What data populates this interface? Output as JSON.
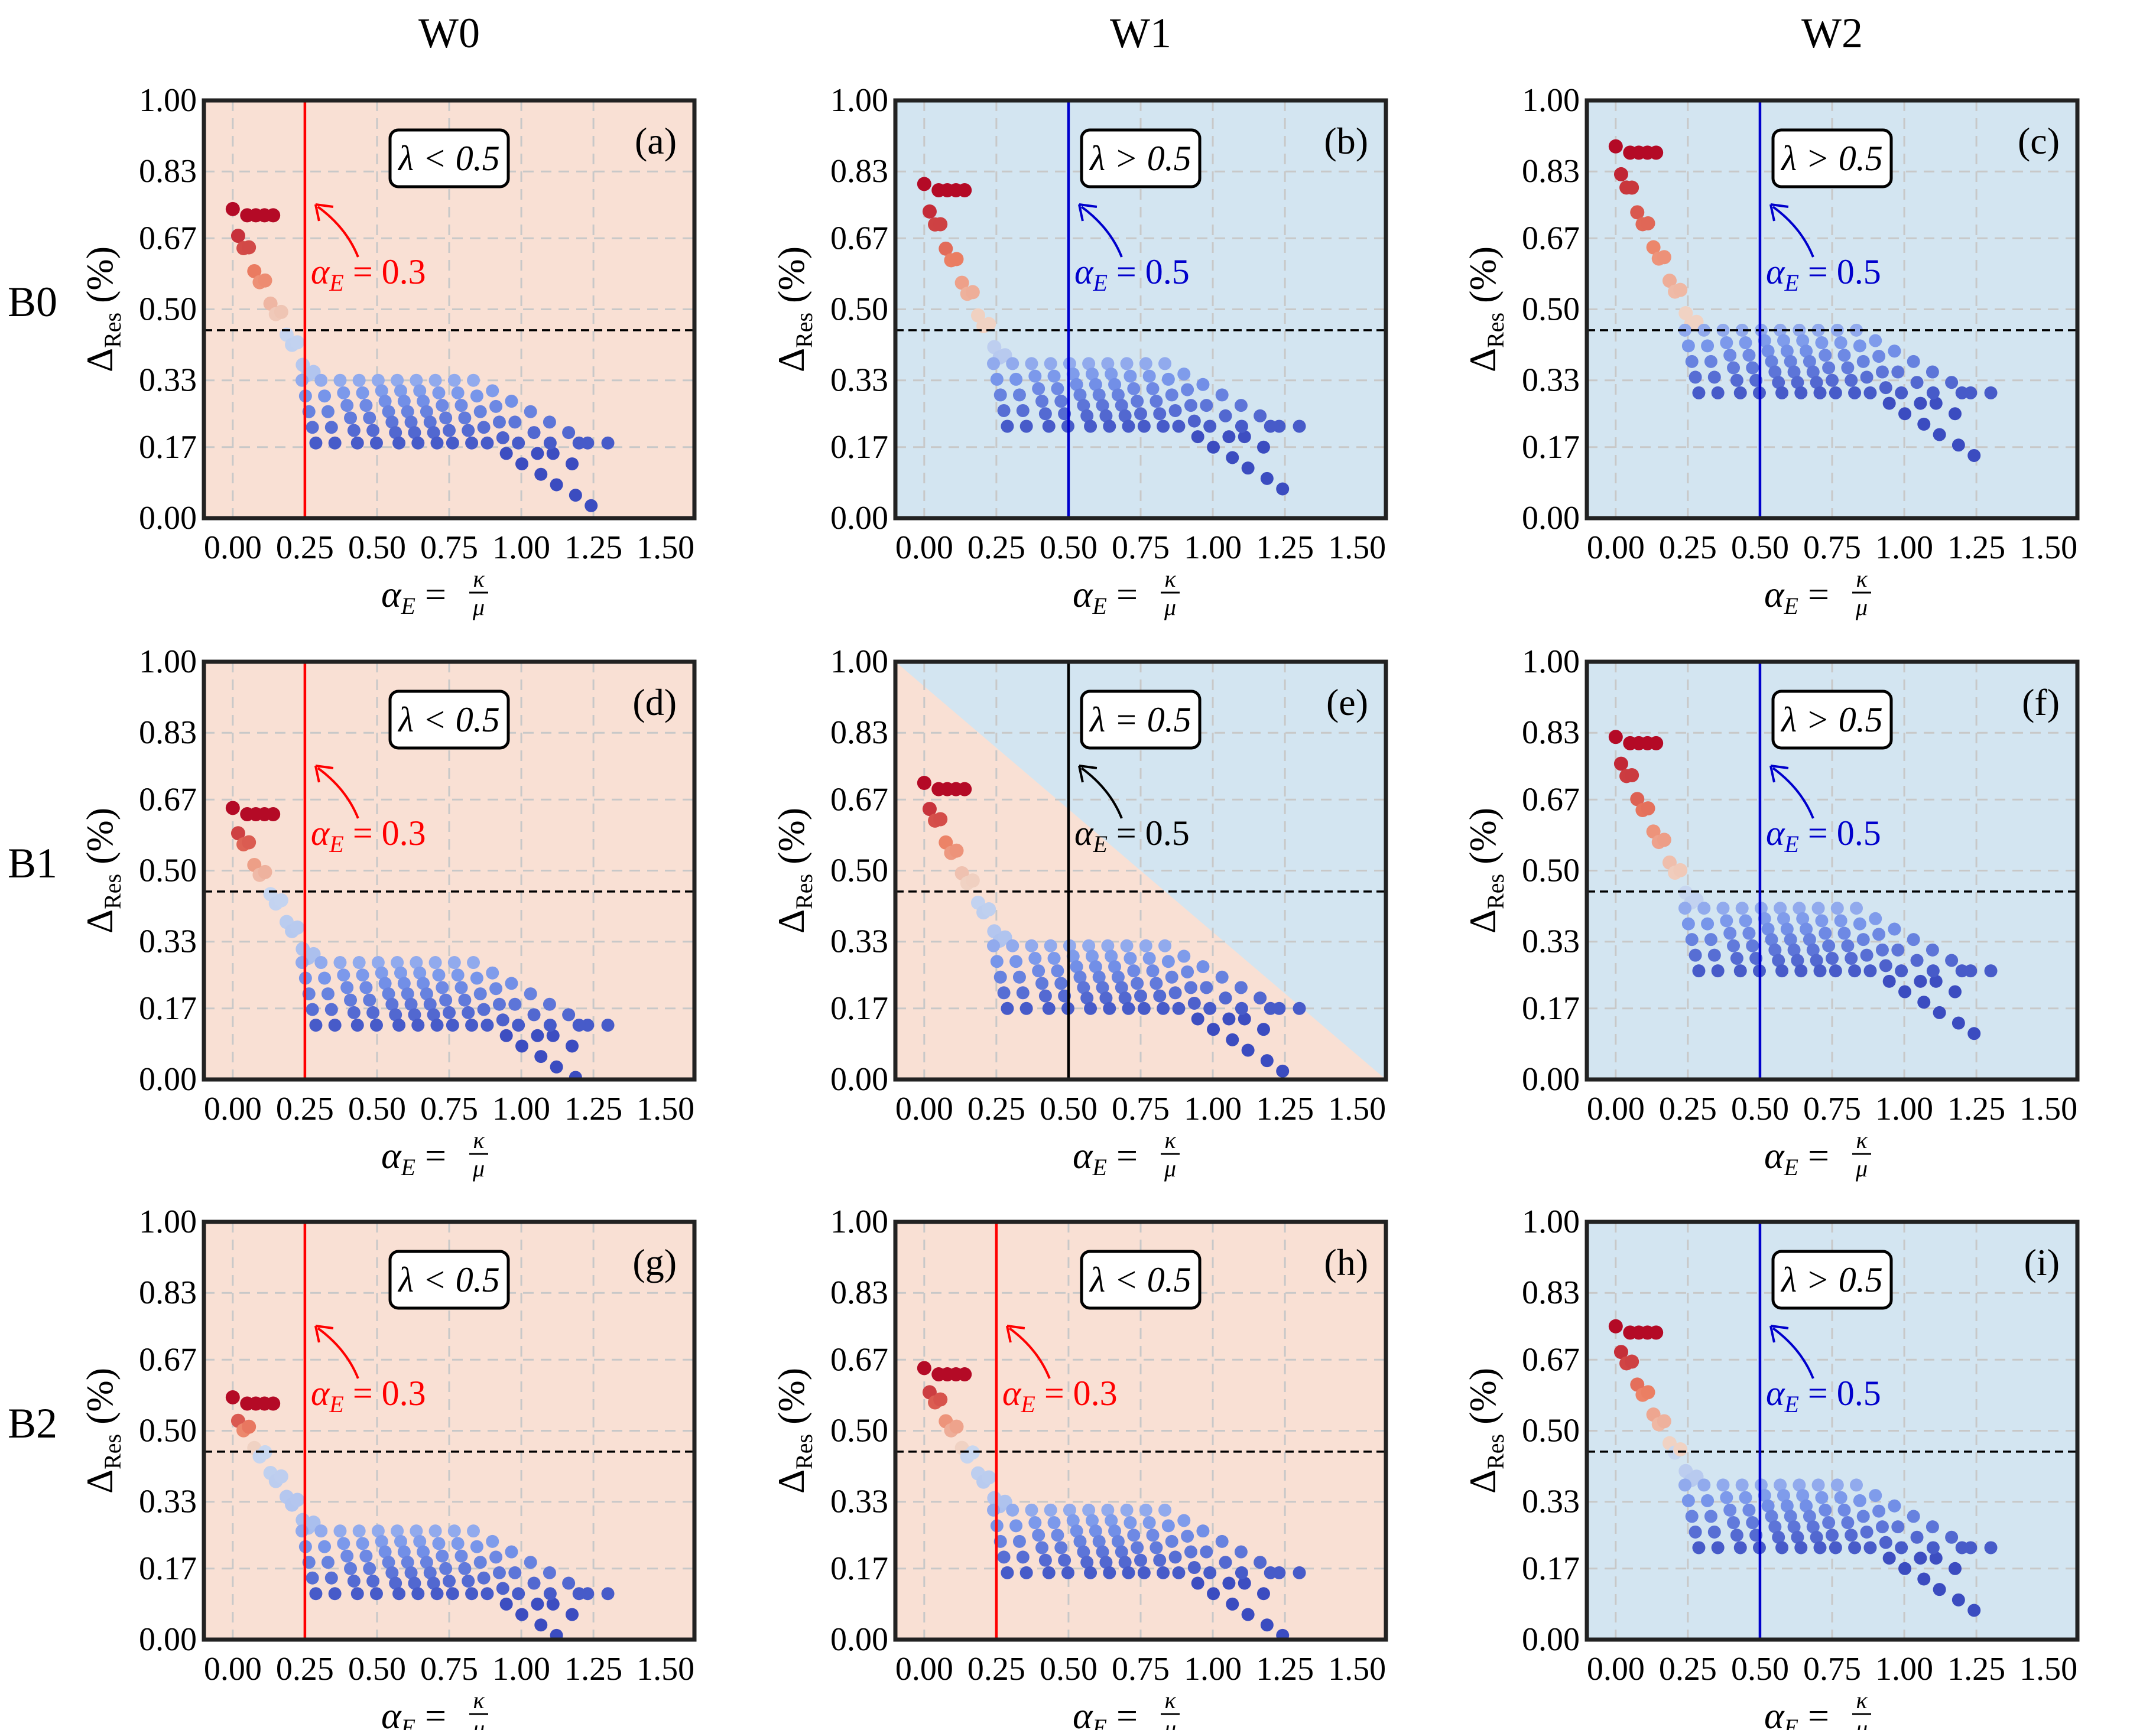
{
  "figure": {
    "col_headers": [
      "W0",
      "W1",
      "W2"
    ],
    "row_headers": [
      "B0",
      "B1",
      "B2"
    ],
    "x_ticks": [
      "0.00",
      "0.25",
      "0.50",
      "0.75",
      "1.00",
      "1.25",
      "1.50"
    ],
    "y_ticks": [
      "0.00",
      "0.17",
      "0.33",
      "0.50",
      "0.67",
      "0.83",
      "1.00"
    ],
    "x_label": {
      "main": "α",
      "sub": "E",
      "eq": " = ",
      "num": "κ",
      "den": "μ"
    },
    "y_label": {
      "main": "Δ",
      "sub": "Res",
      "unit": "(%)"
    },
    "colors": {
      "red_region": "#f9e0d4",
      "blue_region": "#d3e5f1",
      "red_line": "#ff0000",
      "blue_line": "#0000cc",
      "black_line": "#000000"
    }
  },
  "chart_data": [
    {
      "panel": "(a)",
      "type": "scatter",
      "xlabel": "αE = κ/μ",
      "ylabel": "ΔRes (%)",
      "xlim": [
        -0.1,
        1.6
      ],
      "ylim": [
        0.0,
        1.0
      ],
      "threshold": 0.45,
      "region": "red",
      "lambda_text": "λ < 0.5",
      "vline": {
        "x": 0.25,
        "color": "red"
      },
      "annotation": {
        "prefix": "α",
        "sub": "E",
        "value": " = 0.3"
      },
      "cluster": {
        "peak": 0.72,
        "tail": 0.18
      }
    },
    {
      "panel": "(b)",
      "type": "scatter",
      "xlabel": "αE = κ/μ",
      "ylabel": "ΔRes (%)",
      "xlim": [
        -0.1,
        1.6
      ],
      "ylim": [
        0.0,
        1.0
      ],
      "threshold": 0.45,
      "region": "blue",
      "lambda_text": "λ > 0.5",
      "vline": {
        "x": 0.5,
        "color": "blue"
      },
      "annotation": {
        "prefix": "α",
        "sub": "E",
        "value": " = 0.5"
      },
      "cluster": {
        "peak": 0.78,
        "tail": 0.22
      }
    },
    {
      "panel": "(c)",
      "type": "scatter",
      "xlabel": "αE = κ/μ",
      "ylabel": "ΔRes (%)",
      "xlim": [
        -0.1,
        1.6
      ],
      "ylim": [
        0.0,
        1.0
      ],
      "threshold": 0.45,
      "region": "blue",
      "lambda_text": "λ > 0.5",
      "vline": {
        "x": 0.5,
        "color": "blue"
      },
      "annotation": {
        "prefix": "α",
        "sub": "E",
        "value": " = 0.5"
      },
      "cluster": {
        "peak": 0.87,
        "tail": 0.3
      }
    },
    {
      "panel": "(d)",
      "type": "scatter",
      "xlabel": "αE = κ/μ",
      "ylabel": "ΔRes (%)",
      "xlim": [
        -0.1,
        1.6
      ],
      "ylim": [
        0.0,
        1.0
      ],
      "threshold": 0.45,
      "region": "red",
      "lambda_text": "λ < 0.5",
      "vline": {
        "x": 0.25,
        "color": "red"
      },
      "annotation": {
        "prefix": "α",
        "sub": "E",
        "value": " = 0.3"
      },
      "cluster": {
        "peak": 0.63,
        "tail": 0.13
      }
    },
    {
      "panel": "(e)",
      "type": "scatter",
      "xlabel": "αE = κ/μ",
      "ylabel": "ΔRes (%)",
      "xlim": [
        -0.1,
        1.6
      ],
      "ylim": [
        0.0,
        1.0
      ],
      "threshold": 0.45,
      "region": "diagonal",
      "lambda_text": "λ = 0.5",
      "vline": {
        "x": 0.5,
        "color": "black"
      },
      "annotation": {
        "prefix": "α",
        "sub": "E",
        "value": " = 0.5"
      },
      "cluster": {
        "peak": 0.69,
        "tail": 0.17
      }
    },
    {
      "panel": "(f)",
      "type": "scatter",
      "xlabel": "αE = κ/μ",
      "ylabel": "ΔRes (%)",
      "xlim": [
        -0.1,
        1.6
      ],
      "ylim": [
        0.0,
        1.0
      ],
      "threshold": 0.45,
      "region": "blue",
      "lambda_text": "λ > 0.5",
      "vline": {
        "x": 0.5,
        "color": "blue"
      },
      "annotation": {
        "prefix": "α",
        "sub": "E",
        "value": " = 0.5"
      },
      "cluster": {
        "peak": 0.8,
        "tail": 0.26
      }
    },
    {
      "panel": "(g)",
      "type": "scatter",
      "xlabel": "αE = κ/μ",
      "ylabel": "ΔRes (%)",
      "xlim": [
        -0.1,
        1.6
      ],
      "ylim": [
        0.0,
        1.0
      ],
      "threshold": 0.45,
      "region": "red",
      "lambda_text": "λ < 0.5",
      "vline": {
        "x": 0.25,
        "color": "red"
      },
      "annotation": {
        "prefix": "α",
        "sub": "E",
        "value": " = 0.3"
      },
      "cluster": {
        "peak": 0.56,
        "tail": 0.11
      }
    },
    {
      "panel": "(h)",
      "type": "scatter",
      "xlabel": "αE = κ/μ",
      "ylabel": "ΔRes (%)",
      "xlim": [
        -0.1,
        1.6
      ],
      "ylim": [
        0.0,
        1.0
      ],
      "threshold": 0.45,
      "region": "red",
      "lambda_text": "λ < 0.5",
      "vline": {
        "x": 0.25,
        "color": "red"
      },
      "annotation": {
        "prefix": "α",
        "sub": "E",
        "value": " = 0.3"
      },
      "cluster": {
        "peak": 0.63,
        "tail": 0.16
      }
    },
    {
      "panel": "(i)",
      "type": "scatter",
      "xlabel": "αE = κ/μ",
      "ylabel": "ΔRes (%)",
      "xlim": [
        -0.1,
        1.6
      ],
      "ylim": [
        0.0,
        1.0
      ],
      "threshold": 0.45,
      "region": "blue",
      "lambda_text": "λ > 0.5",
      "vline": {
        "x": 0.5,
        "color": "blue"
      },
      "annotation": {
        "prefix": "α",
        "sub": "E",
        "value": " = 0.5"
      },
      "cluster": {
        "peak": 0.73,
        "tail": 0.22
      }
    }
  ]
}
